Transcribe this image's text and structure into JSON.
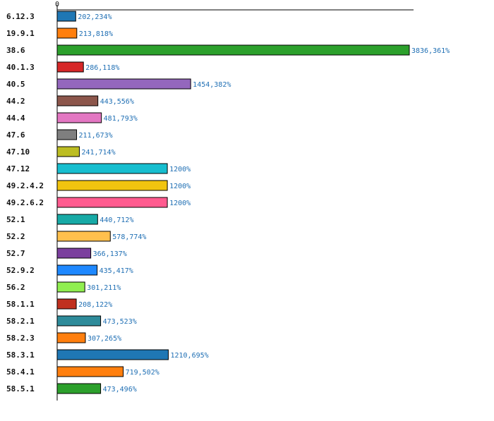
{
  "chart_data": {
    "type": "bar",
    "orientation": "horizontal",
    "title": "",
    "xlabel": "",
    "ylabel": "",
    "x_ticks": [
      "0"
    ],
    "grid": false,
    "categories": [
      "6.12.3",
      "19.9.1",
      "38.6",
      "40.1.3",
      "40.5",
      "44.2",
      "44.4",
      "47.6",
      "47.10",
      "47.12",
      "49.2.4.2",
      "49.2.6.2",
      "52.1",
      "52.2",
      "52.7",
      "52.9.2",
      "56.2",
      "58.1.1",
      "58.2.1",
      "58.2.3",
      "58.3.1",
      "58.4.1",
      "58.5.1"
    ],
    "values": [
      202.234,
      213.818,
      3836.361,
      286.118,
      1454.382,
      443.556,
      481.793,
      211.673,
      241.714,
      1200,
      1200,
      1200,
      440.712,
      578.774,
      366.137,
      435.417,
      301.211,
      208.122,
      473.523,
      307.265,
      1210.695,
      719.502,
      473.496
    ],
    "value_labels": [
      "202,234%",
      "213,818%",
      "3836,361%",
      "286,118%",
      "1454,382%",
      "443,556%",
      "481,793%",
      "211,673%",
      "241,714%",
      "1200%",
      "1200%",
      "1200%",
      "440,712%",
      "578,774%",
      "366,137%",
      "435,417%",
      "301,211%",
      "208,122%",
      "473,523%",
      "307,265%",
      "1210,695%",
      "719,502%",
      "473,496%"
    ],
    "colors": [
      "#1f77b4",
      "#ff7f0e",
      "#2ca02c",
      "#d62728",
      "#9467bd",
      "#8c564b",
      "#e377c2",
      "#7f7f7f",
      "#bcbd22",
      "#17becf",
      "#f1c40f",
      "#ff5b8f",
      "#17aaa6",
      "#ffc04d",
      "#7b3f9e",
      "#1e88ff",
      "#90ee50",
      "#c0301f",
      "#2e8b9a",
      "#ff7f0e",
      "#1f77b4",
      "#ff7f0e",
      "#2ca02c"
    ]
  }
}
